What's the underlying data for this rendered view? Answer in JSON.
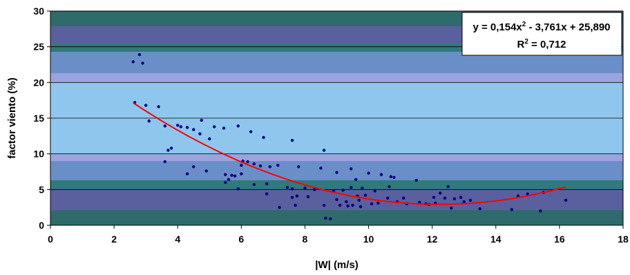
{
  "chart_data": {
    "type": "scatter",
    "xlabel": "|W| (m/s)",
    "ylabel": "factor viento (%)",
    "xlim": [
      0,
      18
    ],
    "ylim": [
      0,
      30
    ],
    "x_ticks": [
      "0",
      "2",
      "4",
      "6",
      "8",
      "10",
      "12",
      "14",
      "16",
      "18"
    ],
    "y_ticks": [
      "0",
      "5",
      "10",
      "15",
      "20",
      "25",
      "30"
    ],
    "grid": "horizontal",
    "legend": "none",
    "equation": "y = 0,154x",
    "equation_exp": "2",
    "equation_rest": " - 3,761x + 25,890",
    "r2_label": "R",
    "r2_exp": "2",
    "r2_value": " = 0,712",
    "equation_position": "top-right",
    "point_color": "#000080",
    "trend_color": "#ff0000",
    "trend_coeffs": {
      "a": 0.154,
      "b": -3.761,
      "c": 25.89
    },
    "trend_range": [
      2.6,
      16.2
    ],
    "points": [
      [
        2.6,
        22.9
      ],
      [
        2.8,
        23.9
      ],
      [
        2.9,
        22.7
      ],
      [
        2.65,
        17.2
      ],
      [
        3.0,
        16.8
      ],
      [
        3.1,
        14.6
      ],
      [
        3.4,
        16.6
      ],
      [
        3.6,
        13.9
      ],
      [
        3.6,
        8.9
      ],
      [
        3.7,
        10.5
      ],
      [
        3.8,
        10.8
      ],
      [
        4.0,
        14.0
      ],
      [
        4.1,
        13.8
      ],
      [
        4.3,
        13.7
      ],
      [
        4.3,
        7.2
      ],
      [
        4.5,
        8.2
      ],
      [
        4.5,
        13.4
      ],
      [
        4.7,
        12.8
      ],
      [
        4.75,
        14.7
      ],
      [
        4.9,
        7.6
      ],
      [
        5.0,
        12.1
      ],
      [
        5.15,
        13.8
      ],
      [
        5.45,
        13.6
      ],
      [
        5.5,
        6.0
      ],
      [
        5.5,
        7.1
      ],
      [
        5.6,
        6.4
      ],
      [
        5.7,
        7.0
      ],
      [
        5.8,
        6.9
      ],
      [
        5.9,
        13.9
      ],
      [
        5.9,
        5.1
      ],
      [
        6.0,
        7.2
      ],
      [
        6.0,
        8.4
      ],
      [
        6.05,
        9.0
      ],
      [
        6.2,
        8.9
      ],
      [
        6.3,
        13.1
      ],
      [
        6.4,
        8.6
      ],
      [
        6.4,
        5.7
      ],
      [
        6.6,
        8.3
      ],
      [
        6.7,
        12.3
      ],
      [
        6.8,
        5.8
      ],
      [
        6.9,
        8.2
      ],
      [
        6.8,
        4.4
      ],
      [
        7.15,
        8.4
      ],
      [
        7.2,
        2.5
      ],
      [
        7.45,
        5.3
      ],
      [
        7.6,
        11.9
      ],
      [
        7.6,
        5.1
      ],
      [
        7.6,
        3.9
      ],
      [
        7.7,
        2.8
      ],
      [
        7.75,
        4.1
      ],
      [
        7.8,
        8.2
      ],
      [
        8.0,
        5.2
      ],
      [
        8.1,
        4.0
      ],
      [
        8.3,
        5.0
      ],
      [
        8.5,
        8.0
      ],
      [
        8.6,
        10.5
      ],
      [
        8.6,
        2.8
      ],
      [
        8.65,
        1.0
      ],
      [
        8.8,
        0.9
      ],
      [
        8.9,
        4.8
      ],
      [
        9.0,
        3.6
      ],
      [
        9.0,
        7.4
      ],
      [
        9.1,
        2.8
      ],
      [
        9.2,
        4.9
      ],
      [
        9.3,
        3.3
      ],
      [
        9.35,
        2.7
      ],
      [
        9.45,
        7.9
      ],
      [
        9.45,
        5.3
      ],
      [
        9.5,
        2.8
      ],
      [
        9.6,
        6.4
      ],
      [
        9.65,
        4.1
      ],
      [
        9.7,
        3.5
      ],
      [
        9.75,
        2.6
      ],
      [
        9.8,
        5.2
      ],
      [
        9.9,
        4.2
      ],
      [
        10.0,
        7.3
      ],
      [
        10.1,
        3.0
      ],
      [
        10.2,
        4.8
      ],
      [
        10.3,
        3.1
      ],
      [
        10.4,
        7.1
      ],
      [
        10.6,
        3.8
      ],
      [
        10.65,
        5.4
      ],
      [
        10.7,
        6.8
      ],
      [
        10.8,
        6.7
      ],
      [
        10.9,
        3.3
      ],
      [
        11.1,
        3.8
      ],
      [
        11.2,
        3.0
      ],
      [
        11.5,
        6.3
      ],
      [
        11.6,
        3.2
      ],
      [
        11.8,
        3.0
      ],
      [
        11.9,
        2.9
      ],
      [
        12.05,
        3.9
      ],
      [
        12.1,
        3.1
      ],
      [
        12.25,
        4.5
      ],
      [
        12.4,
        3.8
      ],
      [
        12.5,
        5.4
      ],
      [
        12.6,
        2.4
      ],
      [
        12.7,
        3.7
      ],
      [
        12.9,
        3.9
      ],
      [
        13.0,
        3.3
      ],
      [
        13.2,
        3.5
      ],
      [
        13.5,
        2.3
      ],
      [
        14.5,
        2.2
      ],
      [
        14.7,
        4.1
      ],
      [
        15.0,
        4.4
      ],
      [
        15.4,
        2.0
      ],
      [
        15.5,
        4.6
      ],
      [
        16.2,
        3.5
      ]
    ]
  }
}
